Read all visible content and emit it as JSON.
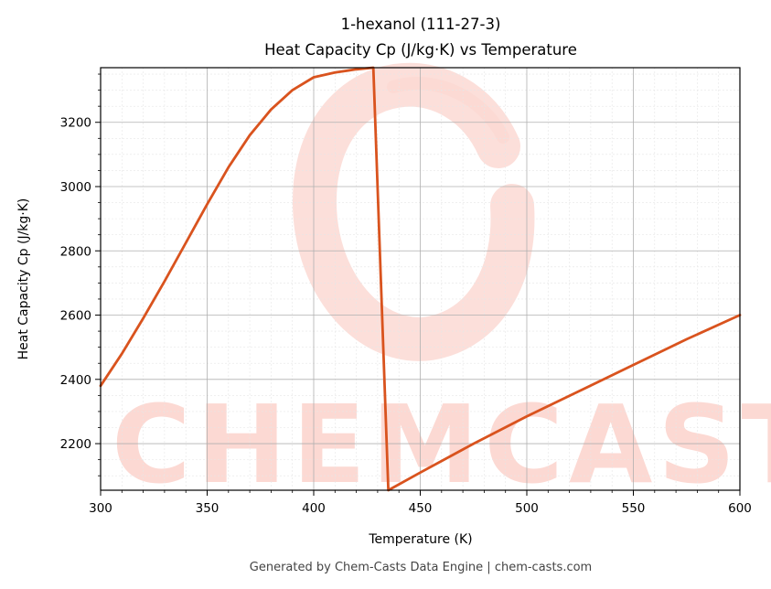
{
  "chart_data": {
    "type": "line",
    "title": [
      "1-hexanol (111-27-3)",
      "Heat Capacity Cp (J/kg·K) vs Temperature"
    ],
    "xlabel": "Temperature (K)",
    "ylabel": "Heat Capacity Cp (J/kg·K)",
    "xlim": [
      300,
      600
    ],
    "ylim": [
      2055,
      3370
    ],
    "xticks": [
      300,
      350,
      400,
      450,
      500,
      550,
      600
    ],
    "yticks": [
      2200,
      2400,
      2600,
      2800,
      3000,
      3200
    ],
    "grid": true,
    "line_color": "#d9531e",
    "series": [
      {
        "x": [
          300,
          310,
          320,
          330,
          340,
          350,
          360,
          370,
          380,
          390,
          400,
          410,
          420,
          428,
          435,
          450,
          475,
          500,
          525,
          550,
          575,
          600
        ],
        "y": [
          2380,
          2480,
          2590,
          2705,
          2825,
          2945,
          3060,
          3160,
          3240,
          3300,
          3340,
          3355,
          3365,
          3370,
          2055,
          2110,
          2200,
          2285,
          2365,
          2445,
          2525,
          2600
        ]
      }
    ]
  },
  "watermark": {
    "text": "CHEMCASTS",
    "color": "#fcd9d3"
  },
  "footer": "Generated by Chem-Casts Data Engine | chem-casts.com"
}
